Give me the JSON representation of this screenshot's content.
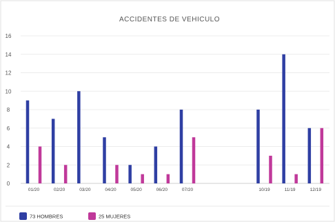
{
  "chart_data": {
    "type": "bar",
    "title": "ACCIDENTES DE VEHICULO",
    "xlabel": "",
    "ylabel": "",
    "ylim": [
      0,
      16
    ],
    "yticks": [
      0,
      2,
      4,
      6,
      8,
      10,
      12,
      14,
      16
    ],
    "grid": true,
    "legend_position": "bottom-left",
    "categories": [
      "01/20",
      "02/20",
      "03/20",
      "04/20",
      "05/20",
      "06/20",
      "07/20",
      "",
      "",
      "10/19",
      "11/19",
      "12/19"
    ],
    "series": [
      {
        "name": "73 HOMBRES",
        "color": "#2f3fa3",
        "values": [
          9,
          7,
          10,
          5,
          2,
          4,
          8,
          null,
          null,
          8,
          14,
          6
        ]
      },
      {
        "name": "25 MUJERES",
        "color": "#c0399a",
        "values": [
          4,
          2,
          0,
          2,
          1,
          1,
          5,
          null,
          null,
          3,
          1,
          6
        ]
      }
    ]
  }
}
